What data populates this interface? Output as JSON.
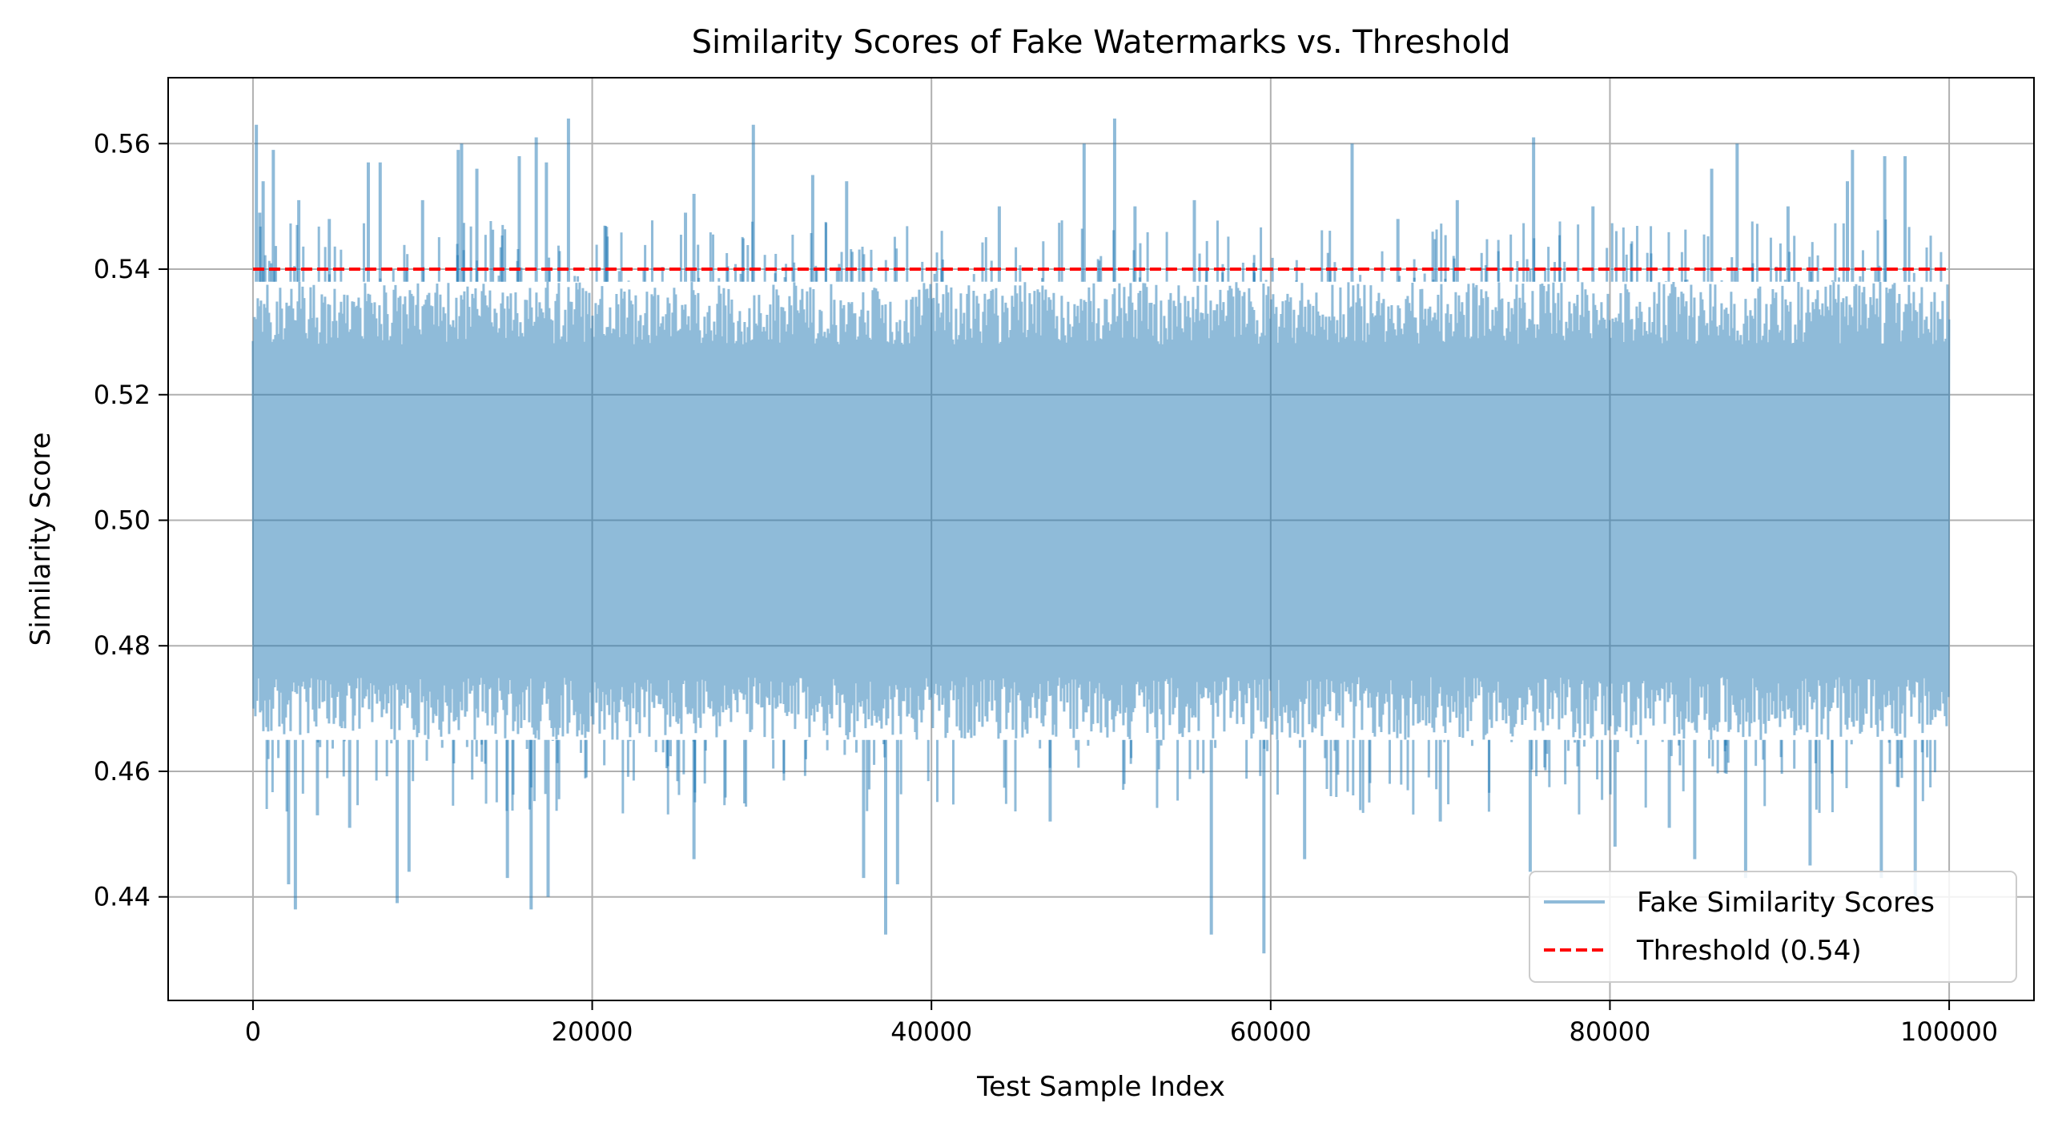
{
  "chart_data": {
    "type": "line",
    "title": "Similarity Scores of Fake Watermarks vs. Threshold",
    "xlabel": "Test Sample Index",
    "ylabel": "Similarity Score",
    "xlim": [
      -5000,
      105000
    ],
    "ylim": [
      0.4235,
      0.5705
    ],
    "x_ticks": [
      0,
      20000,
      40000,
      60000,
      80000,
      100000
    ],
    "x_tick_labels": [
      "0",
      "20000",
      "40000",
      "60000",
      "80000",
      "100000"
    ],
    "y_ticks": [
      0.44,
      0.46,
      0.48,
      0.5,
      0.52,
      0.54,
      0.56
    ],
    "y_tick_labels": [
      "0.44",
      "0.46",
      "0.48",
      "0.50",
      "0.52",
      "0.54",
      "0.56"
    ],
    "grid": true,
    "legend_position": "lower-right",
    "series": [
      {
        "name": "Fake Similarity Scores",
        "color": "#1f77b4",
        "opacity": 0.5,
        "x_range": [
          0,
          100000
        ],
        "band": [
          0.465,
          0.538
        ],
        "spikes_high": [
          [
            200,
            0.563
          ],
          [
            400,
            0.549
          ],
          [
            600,
            0.554
          ],
          [
            1200,
            0.559
          ],
          [
            2700,
            0.551
          ],
          [
            4500,
            0.548
          ],
          [
            6800,
            0.557
          ],
          [
            7500,
            0.557
          ],
          [
            10000,
            0.551
          ],
          [
            12100,
            0.559
          ],
          [
            12300,
            0.56
          ],
          [
            13200,
            0.556
          ],
          [
            15700,
            0.558
          ],
          [
            16700,
            0.561
          ],
          [
            17300,
            0.557
          ],
          [
            18600,
            0.564
          ],
          [
            25500,
            0.549
          ],
          [
            26000,
            0.552
          ],
          [
            29500,
            0.563
          ],
          [
            33000,
            0.555
          ],
          [
            35000,
            0.554
          ],
          [
            44000,
            0.55
          ],
          [
            49000,
            0.56
          ],
          [
            50800,
            0.564
          ],
          [
            52000,
            0.55
          ],
          [
            55500,
            0.551
          ],
          [
            64800,
            0.56
          ],
          [
            67500,
            0.548
          ],
          [
            71000,
            0.551
          ],
          [
            75500,
            0.561
          ],
          [
            79000,
            0.55
          ],
          [
            86000,
            0.556
          ],
          [
            87500,
            0.56
          ],
          [
            90500,
            0.55
          ],
          [
            94000,
            0.554
          ],
          [
            94300,
            0.559
          ],
          [
            96200,
            0.558
          ],
          [
            97400,
            0.558
          ]
        ],
        "spikes_low": [
          [
            2100,
            0.442
          ],
          [
            2500,
            0.438
          ],
          [
            3800,
            0.453
          ],
          [
            5700,
            0.451
          ],
          [
            8500,
            0.439
          ],
          [
            9200,
            0.444
          ],
          [
            15000,
            0.443
          ],
          [
            16400,
            0.438
          ],
          [
            17400,
            0.44
          ],
          [
            26000,
            0.446
          ],
          [
            36000,
            0.443
          ],
          [
            37300,
            0.434
          ],
          [
            38000,
            0.442
          ],
          [
            47000,
            0.452
          ],
          [
            56500,
            0.434
          ],
          [
            59600,
            0.431
          ],
          [
            62000,
            0.446
          ],
          [
            70000,
            0.452
          ],
          [
            75300,
            0.444
          ],
          [
            80300,
            0.448
          ],
          [
            83500,
            0.451
          ],
          [
            85000,
            0.446
          ],
          [
            88000,
            0.443
          ],
          [
            91800,
            0.445
          ],
          [
            96000,
            0.443
          ],
          [
            98000,
            0.44
          ]
        ]
      },
      {
        "name": "Threshold (0.54)",
        "color": "#ff0000",
        "style": "dashed",
        "x_range": [
          0,
          100000
        ],
        "value": 0.54
      }
    ]
  }
}
